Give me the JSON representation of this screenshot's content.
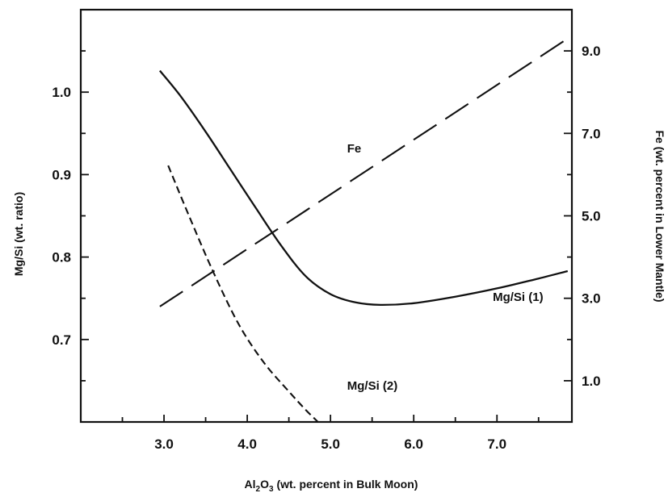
{
  "chart_data": {
    "type": "line",
    "xlabel": "Al2O3 (wt. percent in Bulk Moon)",
    "xlabel_parts": {
      "pre": "Al",
      "sub1": "2",
      "mid": "O",
      "sub2": "3",
      "post": " (wt. percent in Bulk Moon)"
    },
    "ylabel_left": "Mg/Si (wt. ratio)",
    "ylabel_right": "Fe (wt. percent in Lower Mantle)",
    "xlim": [
      2.0,
      7.9
    ],
    "ylim_left": [
      0.6,
      1.1
    ],
    "ylim_right": [
      0.0,
      10.0
    ],
    "x_ticks": [
      3.0,
      4.0,
      5.0,
      6.0,
      7.0
    ],
    "x_tick_labels": [
      "3.0",
      "4.0",
      "5.0",
      "6.0",
      "7.0"
    ],
    "y_left_ticks": [
      0.7,
      0.8,
      0.9,
      1.0
    ],
    "y_left_tick_labels": [
      "0.7",
      "0.8",
      "0.9",
      "1.0"
    ],
    "y_right_ticks": [
      1.0,
      3.0,
      5.0,
      7.0,
      9.0
    ],
    "y_right_tick_labels": [
      "1.0",
      "3.0",
      "5.0",
      "7.0",
      "9.0"
    ],
    "grid": false,
    "series": [
      {
        "name": "Mg/Si (1)",
        "axis": "left",
        "style": "solid",
        "x": [
          2.95,
          3.2,
          3.5,
          3.8,
          4.1,
          4.4,
          4.7,
          5.0,
          5.3,
          5.6,
          6.0,
          6.5,
          7.0,
          7.5,
          7.85
        ],
        "y": [
          1.026,
          0.995,
          0.952,
          0.906,
          0.86,
          0.815,
          0.777,
          0.755,
          0.745,
          0.742,
          0.744,
          0.752,
          0.762,
          0.774,
          0.783
        ]
      },
      {
        "name": "Mg/Si (2)",
        "axis": "left",
        "style": "short-dash",
        "x": [
          3.05,
          3.3,
          3.6,
          3.9,
          4.2,
          4.5,
          4.7,
          4.85
        ],
        "y": [
          0.911,
          0.85,
          0.78,
          0.718,
          0.672,
          0.637,
          0.615,
          0.6
        ]
      },
      {
        "name": "Fe",
        "axis": "right",
        "style": "long-dash",
        "x": [
          2.95,
          7.85
        ],
        "y": [
          2.8,
          9.3
        ]
      }
    ],
    "labels": [
      {
        "text": "Fe",
        "x": 5.2,
        "y_left": 0.927
      },
      {
        "text": "Mg/Si (1)",
        "x": 6.95,
        "y_left": 0.747
      },
      {
        "text": "Mg/Si (2)",
        "x": 5.2,
        "y_left": 0.639
      }
    ]
  }
}
